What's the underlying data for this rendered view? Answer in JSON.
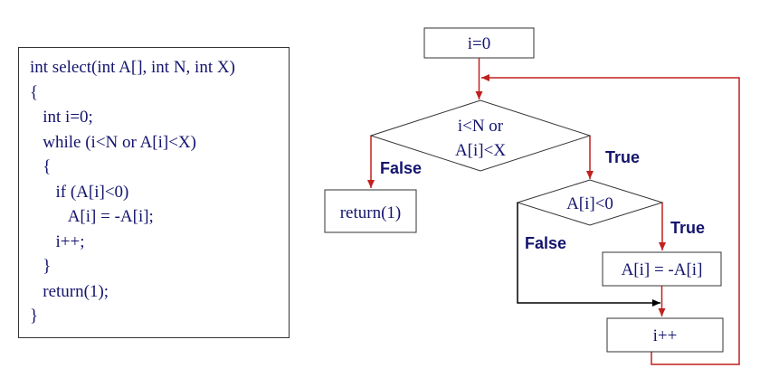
{
  "code": {
    "lines": [
      "int select(int A[], int N, int X)",
      "{",
      "   int i=0;",
      "   while (i<N or A[i]<X)",
      "   {",
      "      if (A[i]<0)",
      "         A[i] = -A[i];",
      "      i++;",
      "   }",
      "   return(1);",
      "}"
    ]
  },
  "flowchart": {
    "init": "i=0",
    "cond1_line1": "i<N or",
    "cond1_line2": "A[i]<X",
    "false1": "False",
    "true1": "True",
    "return_box": "return(1)",
    "cond2": "A[i]<0",
    "true2": "True",
    "false2": "False",
    "assign_box": "A[i] = -A[i]",
    "incr_box": "i++"
  },
  "colors": {
    "text": "#14146e",
    "arrow": "#c0201e",
    "black_arrow": "#000000",
    "border": "#333333"
  }
}
